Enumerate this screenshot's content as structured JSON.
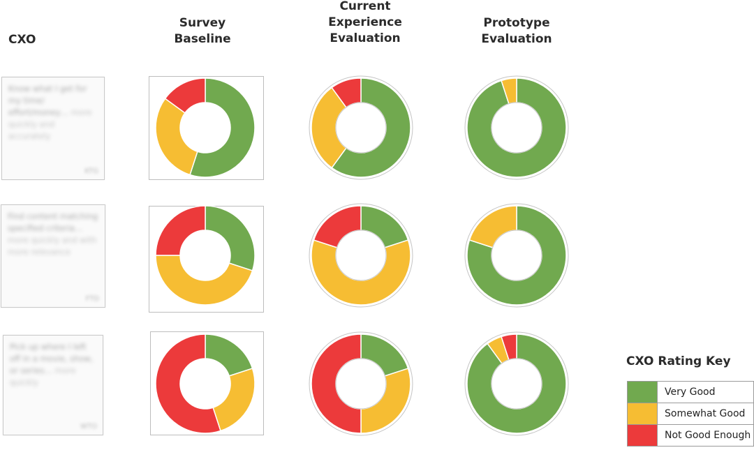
{
  "headers": {
    "cxo": "CXO",
    "baseline": [
      "Survey",
      "Baseline"
    ],
    "current": [
      "Current",
      "Experience",
      "Evaluation"
    ],
    "prototype": [
      "Prototype",
      "Evaluation"
    ]
  },
  "rows": [
    {
      "cxo_main": "Know what I get for my time/ effort/money…",
      "cxo_quality": "more quickly and accurately",
      "cxo_code": "KTG"
    },
    {
      "cxo_main": "Find content matching specified criteria…",
      "cxo_quality": "more quickly and with more relevance",
      "cxo_code": "FTD"
    },
    {
      "cxo_main": "Pick up where I left off in a movie, show, or series…",
      "cxo_quality": "more quickly",
      "cxo_code": "WTO"
    }
  ],
  "colors": {
    "very_good": "#71a94f",
    "somewhat_good": "#f6bd33",
    "not_good_enough": "#ec3a3b"
  },
  "key": {
    "title": "CXO Rating Key",
    "items": [
      {
        "label": "Very Good",
        "color": "#71a94f"
      },
      {
        "label": "Somewhat Good",
        "color": "#f6bd33"
      },
      {
        "label": "Not Good Enough",
        "color": "#ec3a3b"
      }
    ]
  },
  "chart_data": {
    "type": "pie",
    "categories": [
      "Very Good",
      "Somewhat Good",
      "Not Good Enough"
    ],
    "columns": [
      "Survey Baseline",
      "Current Experience Evaluation",
      "Prototype Evaluation"
    ],
    "grid": [
      [
        [
          55,
          30,
          15
        ],
        [
          60,
          30,
          10
        ],
        [
          95,
          5,
          0
        ]
      ],
      [
        [
          30,
          45,
          25
        ],
        [
          20,
          60,
          20
        ],
        [
          80,
          20,
          0
        ]
      ],
      [
        [
          20,
          25,
          55
        ],
        [
          20,
          30,
          50
        ],
        [
          90,
          5,
          5
        ]
      ]
    ]
  }
}
